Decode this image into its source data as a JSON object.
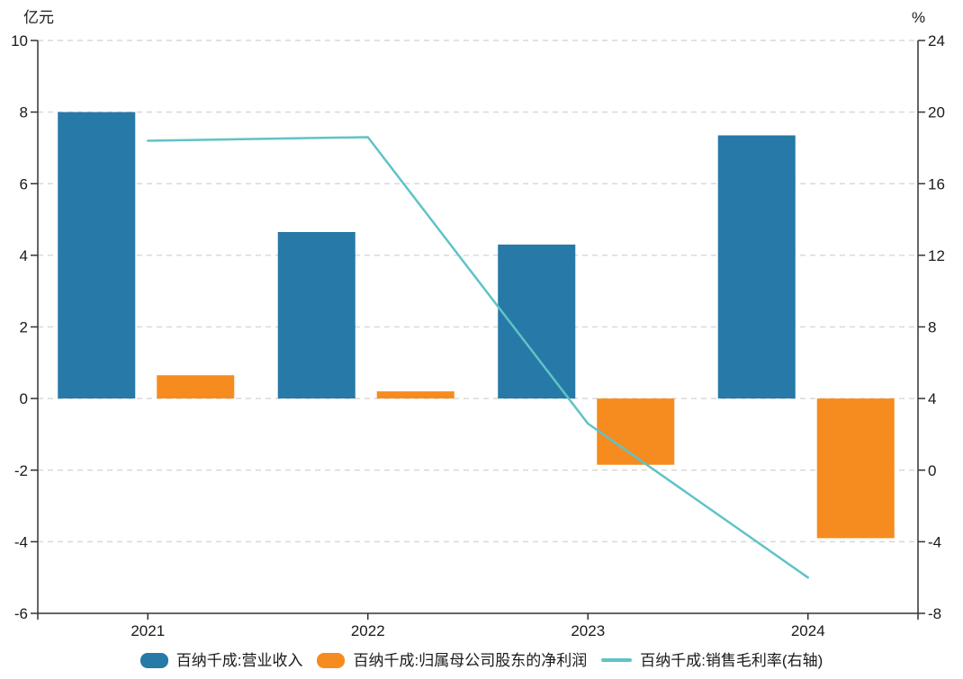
{
  "chart_data": {
    "type": "combo",
    "title": "",
    "categories": [
      "2021",
      "2022",
      "2023",
      "2024"
    ],
    "series": [
      {
        "key": "revenue",
        "name": "百纳千成:营业收入",
        "type": "bar",
        "axis": "left",
        "color": "#2779A7",
        "values": [
          8.0,
          4.65,
          4.3,
          7.35
        ]
      },
      {
        "key": "net-profit",
        "name": "百纳千成:归属母公司股东的净利润",
        "type": "bar",
        "axis": "left",
        "color": "#F68B1F",
        "values": [
          0.65,
          0.2,
          -1.85,
          -3.9
        ]
      },
      {
        "key": "gross-margin",
        "name": "百纳千成:销售毛利率(右轴)",
        "type": "line",
        "axis": "right",
        "color": "#5FC3C7",
        "values": [
          18.4,
          18.6,
          2.6,
          -6.0
        ]
      }
    ],
    "left_axis": {
      "title": "亿元",
      "min": -6,
      "max": 10,
      "ticks": [
        10,
        8,
        6,
        4,
        2,
        0,
        -2,
        -4,
        -6
      ]
    },
    "right_axis": {
      "title": "%",
      "min": -8,
      "max": 24,
      "ticks": [
        24,
        20,
        16,
        12,
        8,
        4,
        0,
        -4,
        -8
      ]
    },
    "grid": true,
    "legend_position": "bottom"
  },
  "colors": {
    "axis_line": "#333333",
    "grid_line": "#d9d9d9",
    "text": "#1a1a1a",
    "background": "#ffffff"
  }
}
